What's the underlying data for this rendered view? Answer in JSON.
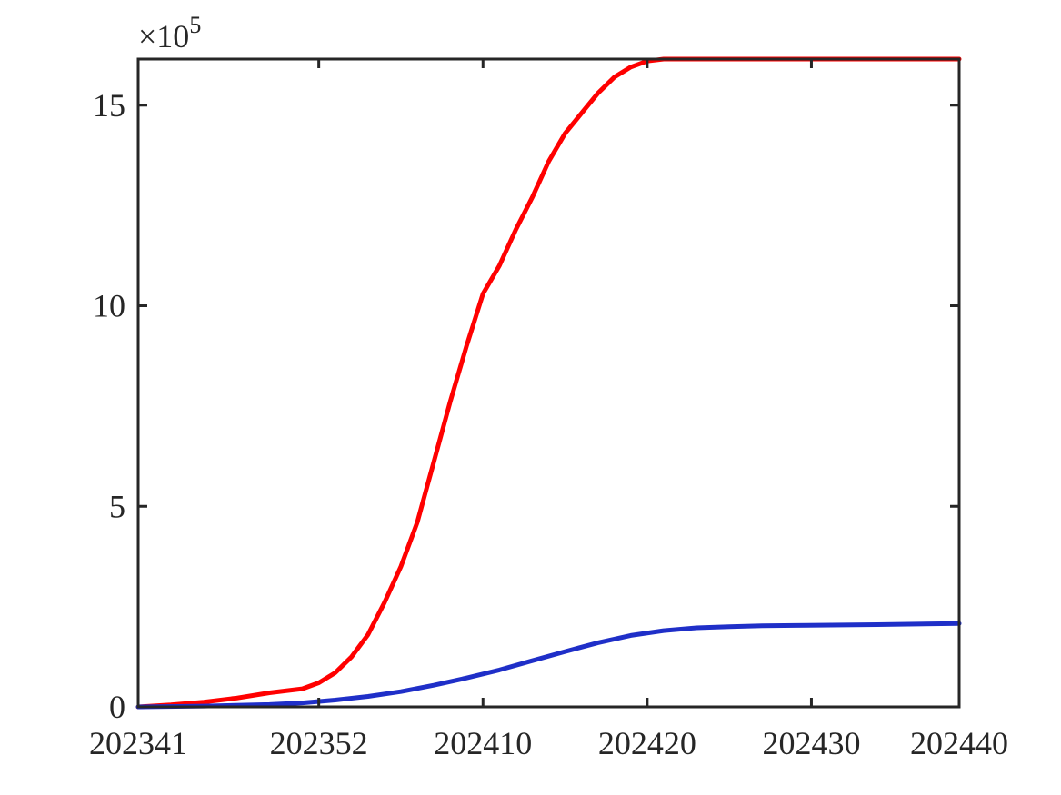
{
  "chart_data": {
    "type": "line",
    "title": "",
    "xlabel": "",
    "ylabel": "",
    "y_exponent_label": {
      "times": "×10",
      "power": "5"
    },
    "x_tick_labels": [
      "202341",
      "202352",
      "202410",
      "202420",
      "202430",
      "202440"
    ],
    "y_tick_labels": [
      "0",
      "5",
      "10",
      "15"
    ],
    "y_ticks": [
      0,
      5,
      10,
      15
    ],
    "ylim": [
      0,
      16.15
    ],
    "xlim_index": [
      0,
      50
    ],
    "x_tick_positions_index": [
      0,
      11,
      21,
      31,
      41,
      51
    ],
    "grid": false,
    "box": true,
    "series": [
      {
        "color": "#ff0000",
        "x_index": [
          0,
          2,
          4,
          6,
          8,
          10,
          11,
          12,
          13,
          14,
          15,
          16,
          17,
          18,
          19,
          20,
          21,
          22,
          23,
          24,
          25,
          26,
          27,
          28,
          29,
          30,
          31,
          32,
          33,
          35,
          40,
          45,
          50
        ],
        "values": [
          0.0,
          0.05,
          0.12,
          0.22,
          0.35,
          0.45,
          0.6,
          0.85,
          1.25,
          1.8,
          2.6,
          3.5,
          4.6,
          6.1,
          7.6,
          9.0,
          10.3,
          11.0,
          11.9,
          12.7,
          13.6,
          14.3,
          14.8,
          15.3,
          15.7,
          15.95,
          16.1,
          16.15,
          16.15,
          16.15,
          16.15,
          16.15,
          16.15
        ]
      },
      {
        "color": "#1f2fc8",
        "x_index": [
          0,
          4,
          8,
          10,
          12,
          14,
          16,
          18,
          20,
          22,
          24,
          26,
          28,
          30,
          32,
          34,
          36,
          38,
          40,
          45,
          50
        ],
        "values": [
          0.0,
          0.02,
          0.06,
          0.1,
          0.17,
          0.26,
          0.38,
          0.54,
          0.72,
          0.92,
          1.15,
          1.38,
          1.6,
          1.78,
          1.9,
          1.97,
          2.0,
          2.02,
          2.03,
          2.05,
          2.08
        ]
      }
    ]
  }
}
